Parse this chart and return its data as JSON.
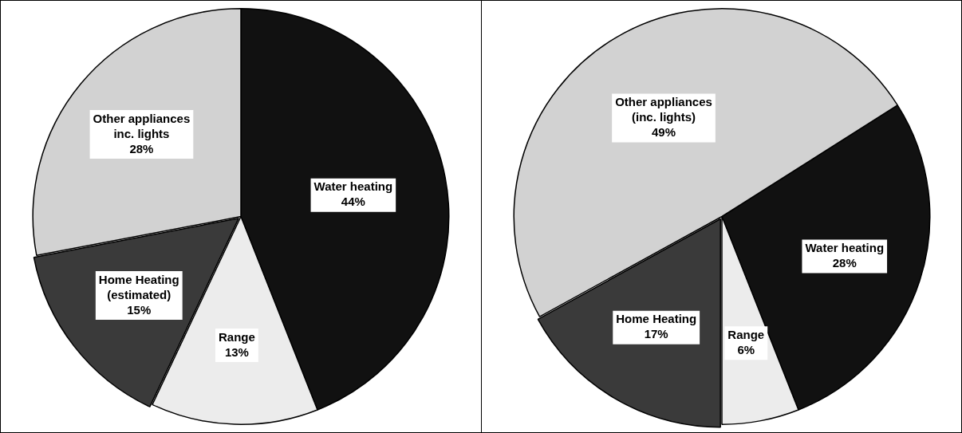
{
  "chart_data": [
    {
      "type": "pie",
      "categories": [
        "Water heating",
        "Range",
        "Home Heating (estimated)",
        "Other appliances inc. lights"
      ],
      "values": [
        44,
        13,
        15,
        28
      ],
      "colors": [
        "#111111",
        "#ececec",
        "#3a3a3a",
        "#d2d2d2"
      ],
      "value_labels": [
        "44%",
        "13%",
        "15%",
        "28%"
      ]
    },
    {
      "type": "pie",
      "categories": [
        "Water heating",
        "Range",
        "Home Heating",
        "Other appliances (inc. lights)"
      ],
      "values": [
        28,
        6,
        17,
        49
      ],
      "colors": [
        "#111111",
        "#ececec",
        "#3a3a3a",
        "#d2d2d2"
      ],
      "value_labels": [
        "28%",
        "6%",
        "17%",
        "49%"
      ]
    }
  ]
}
